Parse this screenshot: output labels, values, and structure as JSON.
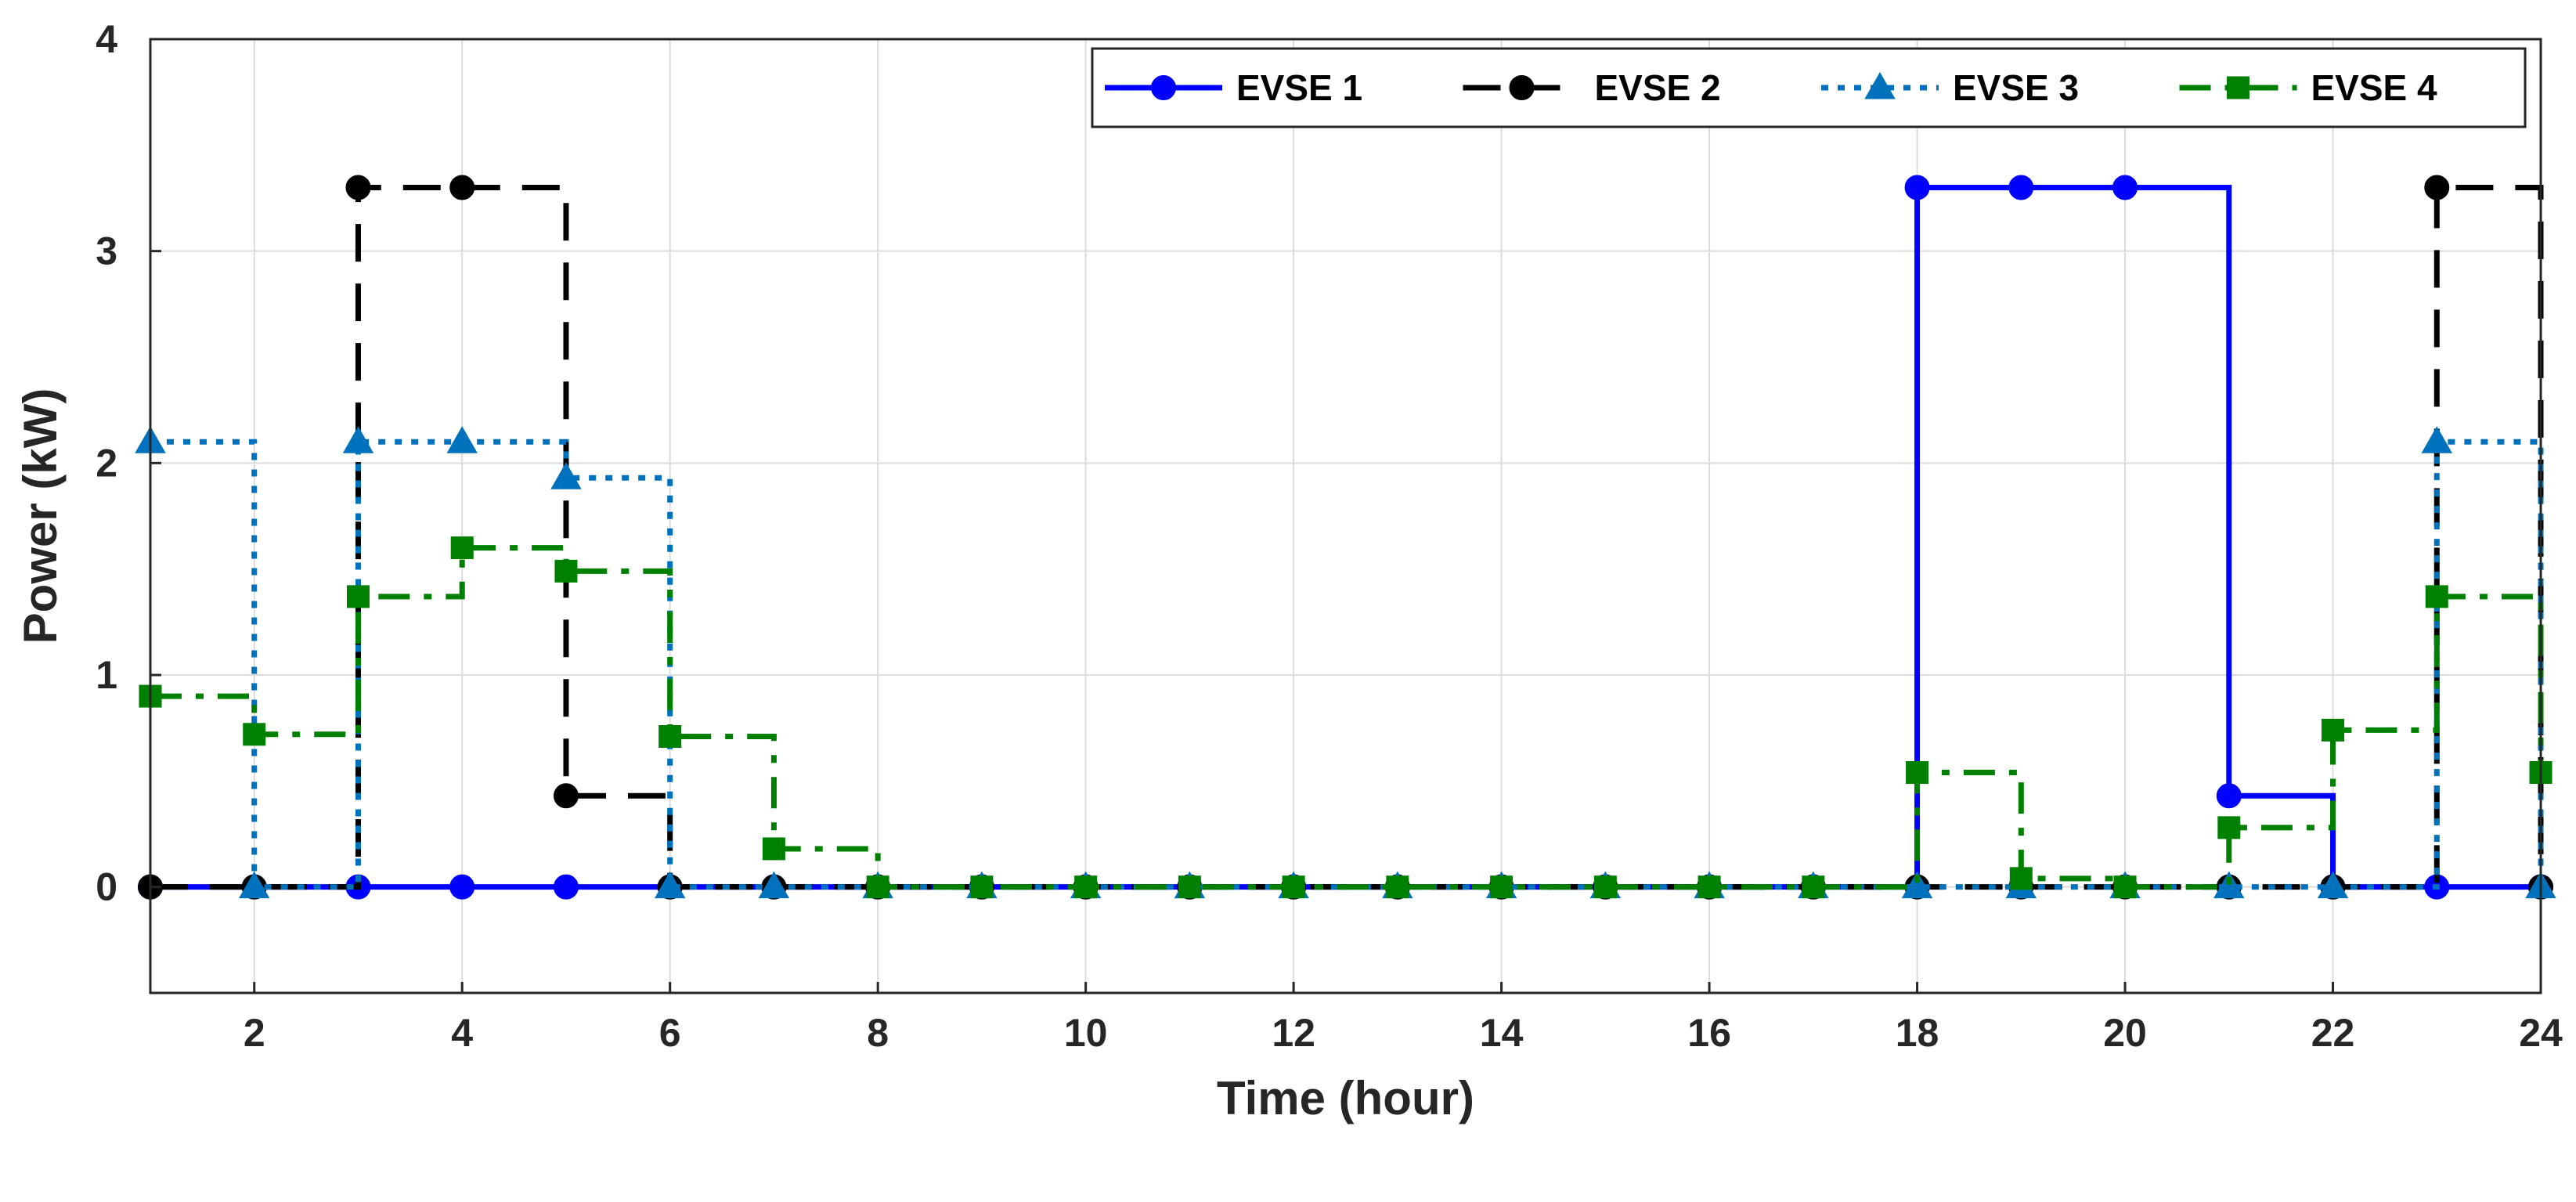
{
  "chart_data": {
    "type": "line",
    "step": "post",
    "xlabel": "Time (hour)",
    "ylabel": "Power (kW)",
    "xlim": [
      1,
      24
    ],
    "ylim": [
      -0.5,
      4
    ],
    "xticks": [
      2,
      4,
      6,
      8,
      10,
      12,
      14,
      16,
      18,
      20,
      22,
      24
    ],
    "yticks": [
      0,
      1,
      2,
      3,
      4
    ],
    "grid": true,
    "legend_position": "top-right",
    "x": [
      1,
      2,
      3,
      4,
      5,
      6,
      7,
      8,
      9,
      10,
      11,
      12,
      13,
      14,
      15,
      16,
      17,
      18,
      19,
      20,
      21,
      22,
      23,
      24
    ],
    "series": [
      {
        "name": "EVSE 1",
        "color": "#0000ff",
        "style": "solid",
        "marker": "circle",
        "values": [
          0,
          0,
          0,
          0,
          0,
          0,
          0,
          0,
          0,
          0,
          0,
          0,
          0,
          0,
          0,
          0,
          0,
          3.3,
          3.3,
          3.3,
          0.43,
          0,
          0,
          0
        ]
      },
      {
        "name": "EVSE 2",
        "color": "#000000",
        "style": "dashed",
        "marker": "circle",
        "values": [
          0,
          0,
          3.3,
          3.3,
          0.43,
          0,
          0,
          0,
          0,
          0,
          0,
          0,
          0,
          0,
          0,
          0,
          0,
          0,
          0,
          0,
          0,
          0,
          3.3,
          0
        ]
      },
      {
        "name": "EVSE 3",
        "color": "#0072bd",
        "style": "dotted",
        "marker": "triangle",
        "values": [
          2.1,
          0,
          2.1,
          2.1,
          1.93,
          0,
          0,
          0,
          0,
          0,
          0,
          0,
          0,
          0,
          0,
          0,
          0,
          0,
          0,
          0,
          0,
          0,
          2.1,
          0
        ]
      },
      {
        "name": "EVSE 4",
        "color": "#008000",
        "style": "dashdot",
        "marker": "square",
        "values": [
          0.9,
          0.72,
          1.37,
          1.6,
          1.49,
          0.71,
          0.18,
          0,
          0,
          0,
          0,
          0,
          0,
          0,
          0,
          0,
          0,
          0.54,
          0.04,
          0,
          0.28,
          0.74,
          1.37,
          0.54
        ]
      }
    ]
  }
}
